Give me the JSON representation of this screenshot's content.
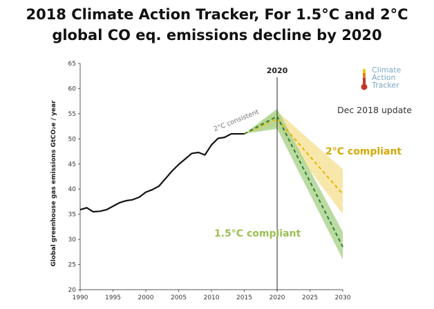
{
  "title_line1": "2018 Climate Action Tracker, For 1.5°C and 2°C",
  "title_line2": "global CO eq. emissions decline by 2020",
  "logo": {
    "line1": "Climate",
    "line2": "Action",
    "line3": "Tracker",
    "icon": "thermometer-icon"
  },
  "update_note": "Dec 2018 update",
  "colors": {
    "history": "#111111",
    "green": "#2f7a3a",
    "green_band": "#a9d28a",
    "yellow": "#e6b400",
    "yellow_band": "#f5df8e",
    "label_2c": "#d4a800",
    "label_15c": "#9bbf52"
  },
  "chart_data": {
    "type": "line",
    "title": "",
    "xlabel": "",
    "ylabel": "Global greenhouse gas emissions GtCO₂e / year",
    "xlim": [
      1990,
      2030
    ],
    "ylim": [
      20,
      65
    ],
    "x_ticks": [
      1990,
      1995,
      2000,
      2005,
      2010,
      2015,
      2020,
      2025,
      2030
    ],
    "y_ticks": [
      20,
      25,
      30,
      35,
      40,
      45,
      50,
      55,
      60,
      65
    ],
    "vertical_marker": {
      "x": 2020,
      "label": "2020"
    },
    "history": {
      "x": [
        1990,
        1991,
        1992,
        1993,
        1994,
        1995,
        1996,
        1997,
        1998,
        1999,
        2000,
        2001,
        2002,
        2003,
        2004,
        2005,
        2006,
        2007,
        2008,
        2009,
        2010,
        2011,
        2012,
        2013,
        2014,
        2015
      ],
      "y": [
        35.9,
        36.3,
        35.5,
        35.6,
        35.9,
        36.6,
        37.3,
        37.7,
        37.9,
        38.4,
        39.4,
        39.9,
        40.6,
        42.1,
        43.6,
        44.9,
        46.0,
        47.1,
        47.3,
        46.8,
        48.8,
        50.1,
        50.3,
        51.0,
        51.0,
        51.0
      ]
    },
    "pathways": [
      {
        "name": "2°C compliant",
        "x": [
          2015,
          2020,
          2030
        ],
        "y": [
          51.0,
          54.0,
          39.0
        ],
        "band_upper": [
          51.0,
          55.5,
          44.0
        ],
        "band_lower": [
          51.0,
          52.5,
          35.0
        ],
        "label": "2°C compliant"
      },
      {
        "name": "1.5°C compliant",
        "x": [
          2015,
          2020,
          2030
        ],
        "y": [
          51.0,
          54.5,
          28.5
        ],
        "band_upper": [
          51.0,
          56.0,
          31.5
        ],
        "band_lower": [
          51.0,
          52.0,
          26.0
        ],
        "label": "1.5°C compliant"
      }
    ],
    "annotation": {
      "text": "2°C consistent",
      "x": 2010.5,
      "y": 51.5
    }
  }
}
